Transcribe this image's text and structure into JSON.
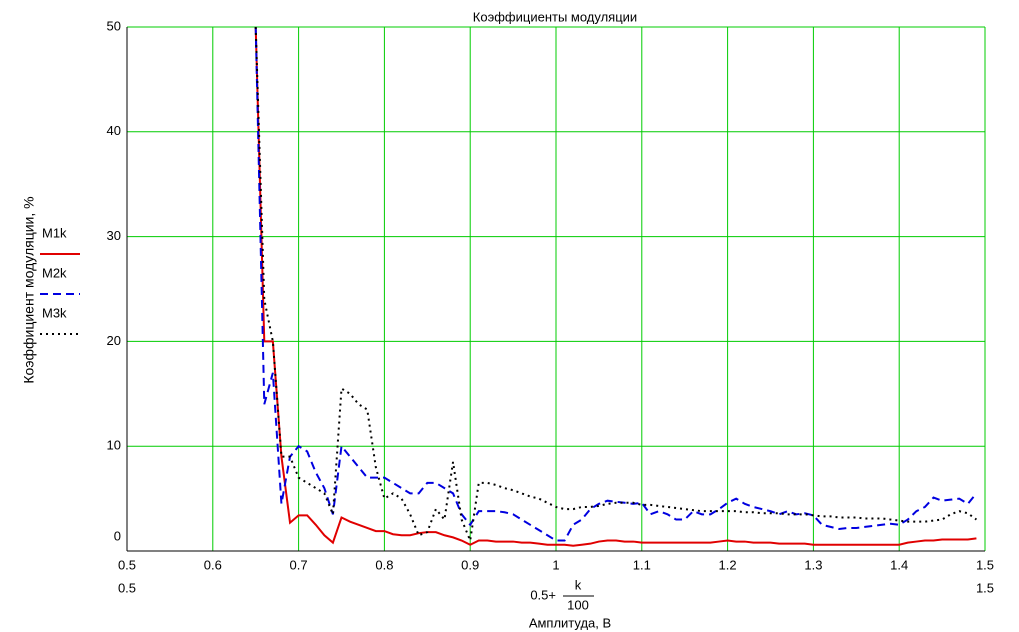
{
  "chart_data": {
    "type": "line",
    "title": "Коэффициенты модуляции",
    "y_label": "Коэффициент модуляции, %",
    "x_expression": {
      "prefix": "0.5+",
      "numerator": "k",
      "denominator": "100"
    },
    "x_label": "Амплитуда, В",
    "xlim": [
      0.5,
      1.5
    ],
    "xticks": [
      0.5,
      0.6,
      0.7,
      0.8,
      0.9,
      1,
      1.1,
      1.2,
      1.3,
      1.4,
      1.5
    ],
    "ylim": [
      0,
      50
    ],
    "yticks": [
      0,
      10,
      20,
      30,
      40,
      50
    ],
    "grid": true,
    "legend": "left",
    "x": [
      0.65,
      0.66,
      0.67,
      0.68,
      0.69,
      0.7,
      0.71,
      0.72,
      0.73,
      0.74,
      0.75,
      0.76,
      0.77,
      0.78,
      0.79,
      0.8,
      0.81,
      0.82,
      0.83,
      0.84,
      0.85,
      0.86,
      0.87,
      0.88,
      0.89,
      0.9,
      0.91,
      0.92,
      0.93,
      0.94,
      0.95,
      0.96,
      0.97,
      0.98,
      0.99,
      1,
      1.01,
      1.02,
      1.03,
      1.04,
      1.05,
      1.06,
      1.07,
      1.08,
      1.09,
      1.1,
      1.11,
      1.12,
      1.13,
      1.14,
      1.15,
      1.16,
      1.17,
      1.18,
      1.19,
      1.2,
      1.21,
      1.22,
      1.23,
      1.24,
      1.25,
      1.26,
      1.27,
      1.28,
      1.29,
      1.3,
      1.31,
      1.32,
      1.33,
      1.34,
      1.35,
      1.36,
      1.37,
      1.38,
      1.39,
      1.4,
      1.41,
      1.42,
      1.43,
      1.44,
      1.45,
      1.46,
      1.47,
      1.48,
      1.49
    ],
    "series": [
      {
        "name": "M1k",
        "color": "#e00000",
        "dash": "solid",
        "values": [
          50,
          20,
          20,
          9,
          2.7,
          3.4,
          3.4,
          2.5,
          1.5,
          0.8,
          3.2,
          2.8,
          2.5,
          2.2,
          1.9,
          1.9,
          1.6,
          1.5,
          1.5,
          1.7,
          1.8,
          1.8,
          1.5,
          1.3,
          1.0,
          0.6,
          1.0,
          1.0,
          0.9,
          0.9,
          0.9,
          0.8,
          0.8,
          0.7,
          0.6,
          0.6,
          0.6,
          0.5,
          0.6,
          0.7,
          0.9,
          1.0,
          1.0,
          0.9,
          0.9,
          0.8,
          0.8,
          0.8,
          0.8,
          0.8,
          0.8,
          0.8,
          0.8,
          0.8,
          0.9,
          1.0,
          0.9,
          0.9,
          0.8,
          0.8,
          0.8,
          0.7,
          0.7,
          0.7,
          0.7,
          0.6,
          0.6,
          0.6,
          0.6,
          0.6,
          0.6,
          0.6,
          0.6,
          0.6,
          0.6,
          0.6,
          0.8,
          0.9,
          1.0,
          1.0,
          1.1,
          1.1,
          1.1,
          1.1,
          1.2
        ]
      },
      {
        "name": "M2k",
        "color": "#0000e0",
        "dash": "dashed",
        "values": [
          50,
          14,
          17,
          4.5,
          9,
          10,
          9.5,
          7.5,
          6,
          3.5,
          10,
          9,
          8,
          7,
          7,
          7,
          6.5,
          6,
          5.5,
          5.5,
          6.5,
          6.5,
          6,
          5.5,
          3.5,
          2.5,
          3.8,
          3.8,
          3.8,
          3.7,
          3.5,
          3,
          2.5,
          2,
          1.5,
          1,
          1,
          2.5,
          3,
          4,
          4.5,
          4.8,
          4.7,
          4.6,
          4.5,
          4.6,
          3.5,
          3.8,
          3.5,
          3,
          3,
          3.8,
          3.5,
          3.5,
          4,
          4.6,
          5,
          4.5,
          4.2,
          4,
          3.8,
          3.5,
          3.8,
          3.5,
          3.6,
          3.4,
          2.5,
          2.3,
          2.1,
          2.2,
          2.2,
          2.3,
          2.4,
          2.5,
          2.6,
          2.5,
          3,
          3.8,
          4.2,
          5.1,
          4.8,
          4.9,
          5,
          4.5,
          5.5
        ]
      },
      {
        "name": "M3k",
        "color": "#000000",
        "dash": "dotted",
        "values": [
          50,
          24,
          20,
          9,
          9,
          7,
          6.5,
          6,
          5.5,
          3.5,
          15.5,
          15,
          14,
          13.5,
          8,
          5,
          5.5,
          5,
          3.5,
          1.5,
          1.8,
          4,
          3,
          8.5,
          3,
          1,
          6.5,
          6.5,
          6.3,
          6,
          5.8,
          5.5,
          5.2,
          5,
          4.6,
          4.2,
          4,
          4,
          4.2,
          4.2,
          4.3,
          4.5,
          4.6,
          4.6,
          4.6,
          4.4,
          4.4,
          4.3,
          4.2,
          4.1,
          4,
          3.9,
          3.8,
          3.8,
          3.8,
          3.8,
          3.8,
          3.7,
          3.7,
          3.6,
          3.6,
          3.6,
          3.5,
          3.5,
          3.5,
          3.4,
          3.3,
          3.3,
          3.2,
          3.2,
          3.2,
          3.1,
          3.1,
          3.1,
          3,
          2.9,
          2.8,
          2.8,
          2.8,
          2.9,
          3,
          3.5,
          3.8,
          3.6,
          3
        ]
      }
    ]
  }
}
